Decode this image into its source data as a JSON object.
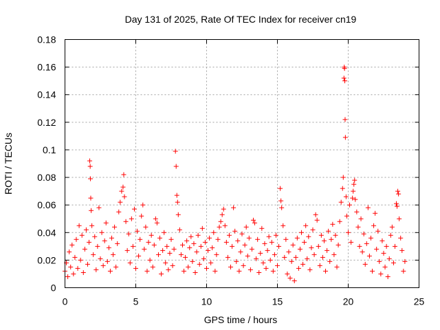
{
  "chart_data": {
    "type": "scatter",
    "title": "Day 131 of 2025, Rate Of TEC Index for receiver cn19",
    "xlabel": "GPS time / hours",
    "ylabel": "ROTI / TECUs",
    "xlim": [
      0,
      25
    ],
    "ylim": [
      0,
      0.18
    ],
    "x_ticks": [
      0,
      5,
      10,
      15,
      20,
      25
    ],
    "x_tick_labels": [
      "0",
      "5",
      "10",
      "15",
      "20",
      "25"
    ],
    "y_ticks": [
      0,
      0.02,
      0.04,
      0.06,
      0.08,
      0.1,
      0.12,
      0.14,
      0.16,
      0.18
    ],
    "y_tick_labels": [
      "0",
      "0.02",
      "0.04",
      "0.06",
      "0.08",
      "0.1",
      "0.12",
      "0.14",
      "0.16",
      "0.18"
    ],
    "grid": true,
    "marker": "+",
    "color": "#ff0000",
    "series": [
      {
        "name": "ROTI",
        "points": [
          [
            0.0,
            0.012
          ],
          [
            0.1,
            0.018
          ],
          [
            0.2,
            0.008
          ],
          [
            0.3,
            0.026
          ],
          [
            0.4,
            0.015
          ],
          [
            0.5,
            0.031
          ],
          [
            0.6,
            0.01
          ],
          [
            0.7,
            0.022
          ],
          [
            0.8,
            0.035
          ],
          [
            0.9,
            0.014
          ],
          [
            1.0,
            0.045
          ],
          [
            1.1,
            0.02
          ],
          [
            1.2,
            0.038
          ],
          [
            1.3,
            0.011
          ],
          [
            1.4,
            0.028
          ],
          [
            1.5,
            0.042
          ],
          [
            1.6,
            0.017
          ],
          [
            1.7,
            0.033
          ],
          [
            1.75,
            0.092
          ],
          [
            1.78,
            0.088
          ],
          [
            1.8,
            0.079
          ],
          [
            1.82,
            0.065
          ],
          [
            1.85,
            0.056
          ],
          [
            1.9,
            0.045
          ],
          [
            2.0,
            0.024
          ],
          [
            2.1,
            0.037
          ],
          [
            2.2,
            0.013
          ],
          [
            2.3,
            0.03
          ],
          [
            2.4,
            0.058
          ],
          [
            2.5,
            0.021
          ],
          [
            2.6,
            0.04
          ],
          [
            2.7,
            0.016
          ],
          [
            2.8,
            0.034
          ],
          [
            2.9,
            0.047
          ],
          [
            3.0,
            0.019
          ],
          [
            3.1,
            0.029
          ],
          [
            3.2,
            0.012
          ],
          [
            3.3,
            0.036
          ],
          [
            3.4,
            0.024
          ],
          [
            3.5,
            0.044
          ],
          [
            3.6,
            0.015
          ],
          [
            3.7,
            0.032
          ],
          [
            3.8,
            0.055
          ],
          [
            3.9,
            0.062
          ],
          [
            4.0,
            0.07
          ],
          [
            4.1,
            0.073
          ],
          [
            4.15,
            0.082
          ],
          [
            4.2,
            0.066
          ],
          [
            4.3,
            0.048
          ],
          [
            4.4,
            0.027
          ],
          [
            4.5,
            0.039
          ],
          [
            4.6,
            0.018
          ],
          [
            4.7,
            0.05
          ],
          [
            4.8,
            0.03
          ],
          [
            4.9,
            0.057
          ],
          [
            5.0,
            0.014
          ],
          [
            5.1,
            0.041
          ],
          [
            5.2,
            0.023
          ],
          [
            5.3,
            0.035
          ],
          [
            5.4,
            0.052
          ],
          [
            5.5,
            0.06
          ],
          [
            5.6,
            0.028
          ],
          [
            5.7,
            0.044
          ],
          [
            5.8,
            0.012
          ],
          [
            5.9,
            0.033
          ],
          [
            6.0,
            0.02
          ],
          [
            6.1,
            0.038
          ],
          [
            6.2,
            0.015
          ],
          [
            6.3,
            0.031
          ],
          [
            6.4,
            0.05
          ],
          [
            6.5,
            0.047
          ],
          [
            6.6,
            0.024
          ],
          [
            6.7,
            0.036
          ],
          [
            6.8,
            0.01
          ],
          [
            6.9,
            0.027
          ],
          [
            7.0,
            0.04
          ],
          [
            7.1,
            0.018
          ],
          [
            7.2,
            0.03
          ],
          [
            7.3,
            0.013
          ],
          [
            7.4,
            0.025
          ],
          [
            7.5,
            0.035
          ],
          [
            7.6,
            0.016
          ],
          [
            7.7,
            0.028
          ],
          [
            7.8,
            0.099
          ],
          [
            7.85,
            0.088
          ],
          [
            7.9,
            0.067
          ],
          [
            7.95,
            0.062
          ],
          [
            8.0,
            0.053
          ],
          [
            8.1,
            0.042
          ],
          [
            8.2,
            0.024
          ],
          [
            8.3,
            0.031
          ],
          [
            8.4,
            0.012
          ],
          [
            8.5,
            0.022
          ],
          [
            8.6,
            0.034
          ],
          [
            8.7,
            0.015
          ],
          [
            8.8,
            0.029
          ],
          [
            8.9,
            0.037
          ],
          [
            9.0,
            0.019
          ],
          [
            9.1,
            0.032
          ],
          [
            9.2,
            0.011
          ],
          [
            9.3,
            0.026
          ],
          [
            9.4,
            0.038
          ],
          [
            9.5,
            0.017
          ],
          [
            9.6,
            0.03
          ],
          [
            9.7,
            0.043
          ],
          [
            9.8,
            0.021
          ],
          [
            9.9,
            0.033
          ],
          [
            10.0,
            0.014
          ],
          [
            10.1,
            0.027
          ],
          [
            10.2,
            0.036
          ],
          [
            10.3,
            0.018
          ],
          [
            10.4,
            0.029
          ],
          [
            10.5,
            0.04
          ],
          [
            10.6,
            0.012
          ],
          [
            10.7,
            0.024
          ],
          [
            10.8,
            0.035
          ],
          [
            10.9,
            0.044
          ],
          [
            11.0,
            0.048
          ],
          [
            11.1,
            0.053
          ],
          [
            11.2,
            0.057
          ],
          [
            11.3,
            0.045
          ],
          [
            11.4,
            0.033
          ],
          [
            11.5,
            0.022
          ],
          [
            11.6,
            0.038
          ],
          [
            11.7,
            0.015
          ],
          [
            11.8,
            0.03
          ],
          [
            11.9,
            0.058
          ],
          [
            12.0,
            0.041
          ],
          [
            12.1,
            0.019
          ],
          [
            12.2,
            0.034
          ],
          [
            12.3,
            0.012
          ],
          [
            12.4,
            0.026
          ],
          [
            12.5,
            0.039
          ],
          [
            12.6,
            0.016
          ],
          [
            12.7,
            0.031
          ],
          [
            12.8,
            0.044
          ],
          [
            12.9,
            0.023
          ],
          [
            13.0,
            0.036
          ],
          [
            13.1,
            0.013
          ],
          [
            13.2,
            0.028
          ],
          [
            13.3,
            0.049
          ],
          [
            13.4,
            0.047
          ],
          [
            13.5,
            0.021
          ],
          [
            13.6,
            0.035
          ],
          [
            13.7,
            0.011
          ],
          [
            13.8,
            0.025
          ],
          [
            13.9,
            0.043
          ],
          [
            14.0,
            0.018
          ],
          [
            14.1,
            0.032
          ],
          [
            14.2,
            0.014
          ],
          [
            14.3,
            0.027
          ],
          [
            14.4,
            0.037
          ],
          [
            14.5,
            0.02
          ],
          [
            14.6,
            0.033
          ],
          [
            14.7,
            0.012
          ],
          [
            14.8,
            0.024
          ],
          [
            14.9,
            0.038
          ],
          [
            15.0,
            0.016
          ],
          [
            15.1,
            0.03
          ],
          [
            15.2,
            0.072
          ],
          [
            15.25,
            0.063
          ],
          [
            15.3,
            0.058
          ],
          [
            15.4,
            0.045
          ],
          [
            15.5,
            0.022
          ],
          [
            15.6,
            0.035
          ],
          [
            15.7,
            0.01
          ],
          [
            15.8,
            0.026
          ],
          [
            15.9,
            0.007
          ],
          [
            16.0,
            0.019
          ],
          [
            16.1,
            0.031
          ],
          [
            16.2,
            0.005
          ],
          [
            16.3,
            0.022
          ],
          [
            16.4,
            0.036
          ],
          [
            16.5,
            0.014
          ],
          [
            16.6,
            0.028
          ],
          [
            16.7,
            0.04
          ],
          [
            16.8,
            0.017
          ],
          [
            16.9,
            0.033
          ],
          [
            17.0,
            0.045
          ],
          [
            17.1,
            0.021
          ],
          [
            17.2,
            0.037
          ],
          [
            17.3,
            0.013
          ],
          [
            17.4,
            0.029
          ],
          [
            17.5,
            0.042
          ],
          [
            17.6,
            0.024
          ],
          [
            17.7,
            0.053
          ],
          [
            17.8,
            0.049
          ],
          [
            17.9,
            0.03
          ],
          [
            18.0,
            0.016
          ],
          [
            18.1,
            0.038
          ],
          [
            18.2,
            0.022
          ],
          [
            18.3,
            0.034
          ],
          [
            18.4,
            0.012
          ],
          [
            18.5,
            0.027
          ],
          [
            18.6,
            0.041
          ],
          [
            18.7,
            0.019
          ],
          [
            18.8,
            0.035
          ],
          [
            18.9,
            0.046
          ],
          [
            19.0,
            0.024
          ],
          [
            19.1,
            0.038
          ],
          [
            19.2,
            0.015
          ],
          [
            19.3,
            0.031
          ],
          [
            19.4,
            0.048
          ],
          [
            19.5,
            0.062
          ],
          [
            19.6,
            0.072
          ],
          [
            19.65,
            0.08
          ],
          [
            19.7,
            0.152
          ],
          [
            19.72,
            0.16
          ],
          [
            19.74,
            0.159
          ],
          [
            19.76,
            0.15
          ],
          [
            19.78,
            0.122
          ],
          [
            19.8,
            0.109
          ],
          [
            19.85,
            0.066
          ],
          [
            19.9,
            0.052
          ],
          [
            20.0,
            0.04
          ],
          [
            20.1,
            0.06
          ],
          [
            20.2,
            0.033
          ],
          [
            20.3,
            0.065
          ],
          [
            20.35,
            0.07
          ],
          [
            20.4,
            0.075
          ],
          [
            20.45,
            0.078
          ],
          [
            20.5,
            0.064
          ],
          [
            20.6,
            0.055
          ],
          [
            20.7,
            0.044
          ],
          [
            20.8,
            0.03
          ],
          [
            20.9,
            0.05
          ],
          [
            21.0,
            0.026
          ],
          [
            21.1,
            0.039
          ],
          [
            21.2,
            0.017
          ],
          [
            21.3,
            0.032
          ],
          [
            21.4,
            0.058
          ],
          [
            21.5,
            0.023
          ],
          [
            21.6,
            0.036
          ],
          [
            21.7,
            0.012
          ],
          [
            21.8,
            0.045
          ],
          [
            21.9,
            0.054
          ],
          [
            22.0,
            0.028
          ],
          [
            22.1,
            0.041
          ],
          [
            22.2,
            0.019
          ],
          [
            22.3,
            0.01
          ],
          [
            22.4,
            0.034
          ],
          [
            22.5,
            0.025
          ],
          [
            22.6,
            0.015
          ],
          [
            22.7,
            0.03
          ],
          [
            22.8,
            0.008
          ],
          [
            22.9,
            0.021
          ],
          [
            23.0,
            0.038
          ],
          [
            23.1,
            0.044
          ],
          [
            23.2,
            0.018
          ],
          [
            23.3,
            0.03
          ],
          [
            23.4,
            0.061
          ],
          [
            23.45,
            0.059
          ],
          [
            23.5,
            0.07
          ],
          [
            23.55,
            0.068
          ],
          [
            23.6,
            0.05
          ],
          [
            23.7,
            0.036
          ],
          [
            23.8,
            0.027
          ],
          [
            23.9,
            0.012
          ],
          [
            24.0,
            0.019
          ]
        ]
      }
    ]
  }
}
